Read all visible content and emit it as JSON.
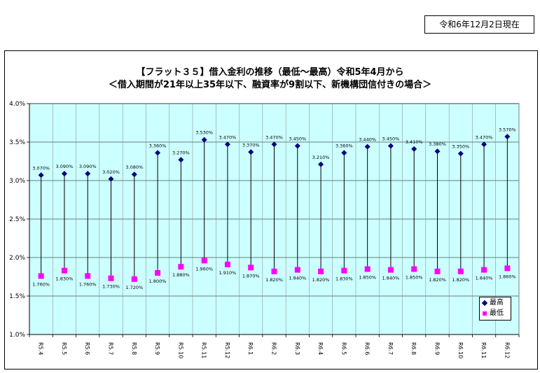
{
  "header": {
    "date_label": "令和6年12月2日現在"
  },
  "chart_data": {
    "type": "scatter",
    "title": "【フラット３５】借入金利の推移（最低～最高）令和5年4月から",
    "subtitle": "＜借入期間が21年以上35年以下、融資率が9割以下、新機構団信付きの場合＞",
    "categories": [
      "R5.4",
      "R5.5",
      "R5.6",
      "R5.7",
      "R5.8",
      "R5.9",
      "R5.10",
      "R5.11",
      "R5.12",
      "R6.1",
      "R6.2",
      "R6.3",
      "R6.4",
      "R6.5",
      "R6.6",
      "R6.7",
      "R6.8",
      "R6.9",
      "R6.10",
      "R6.11",
      "R6.12"
    ],
    "series": [
      {
        "name": "最高",
        "color": "#000080",
        "values": [
          3.07,
          3.09,
          3.09,
          3.02,
          3.08,
          3.36,
          3.27,
          3.53,
          3.47,
          3.37,
          3.47,
          3.45,
          3.21,
          3.36,
          3.44,
          3.45,
          3.41,
          3.38,
          3.35,
          3.47,
          3.57
        ],
        "labels": [
          "3.070%",
          "3.090%",
          "3.090%",
          "3.020%",
          "3.080%",
          "3.360%",
          "3.270%",
          "3.530%",
          "3.470%",
          "3.370%",
          "3.470%",
          "3.450%",
          "3.210%",
          "3.360%",
          "3.440%",
          "3.450%",
          "3.410%",
          "3.380%",
          "3.350%",
          "3.470%",
          "3.570%"
        ]
      },
      {
        "name": "最低",
        "color": "#ff00ff",
        "values": [
          1.76,
          1.83,
          1.76,
          1.73,
          1.72,
          1.8,
          1.88,
          1.96,
          1.91,
          1.87,
          1.82,
          1.84,
          1.82,
          1.83,
          1.85,
          1.84,
          1.85,
          1.82,
          1.82,
          1.84,
          1.86
        ],
        "labels": [
          "1.760%",
          "1.830%",
          "1.760%",
          "1.730%",
          "1.720%",
          "1.800%",
          "1.880%",
          "1.960%",
          "1.910%",
          "1.870%",
          "1.820%",
          "1.840%",
          "1.820%",
          "1.830%",
          "1.850%",
          "1.840%",
          "1.850%",
          "1.820%",
          "1.820%",
          "1.840%",
          "1.860%"
        ]
      }
    ],
    "ylim": [
      1.0,
      4.0
    ],
    "yticks": [
      "1.0%",
      "1.5%",
      "2.0%",
      "2.5%",
      "3.0%",
      "3.5%",
      "4.0%"
    ],
    "ytick_values": [
      1.0,
      1.5,
      2.0,
      2.5,
      3.0,
      3.5,
      4.0
    ],
    "grid": true,
    "legend_position": "bottom-right",
    "plot_bg": "#ccffff"
  }
}
